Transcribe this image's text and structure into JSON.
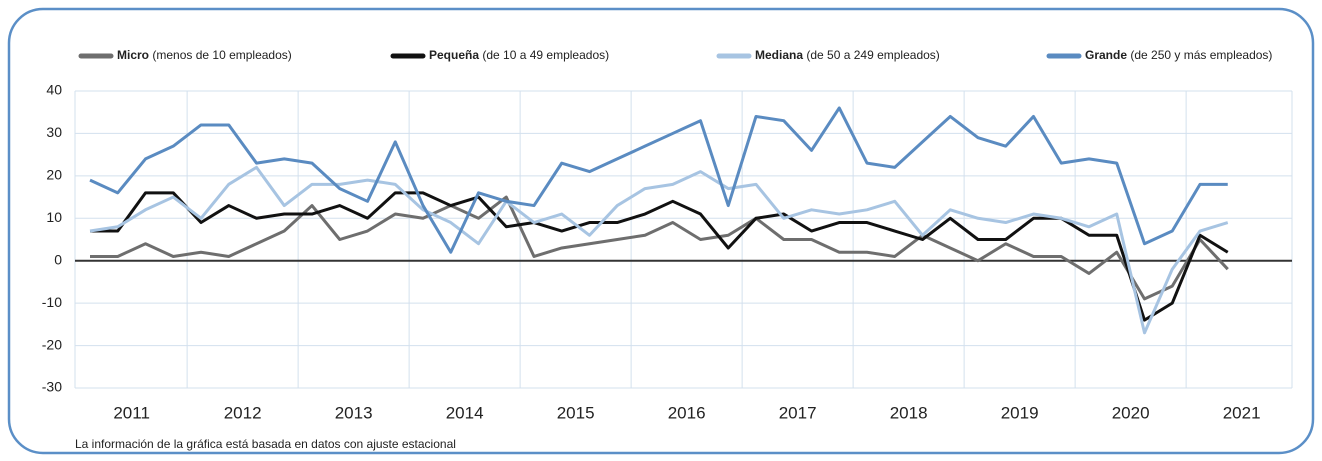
{
  "chart_data": {
    "type": "line",
    "categories": [
      "2011",
      null,
      null,
      null,
      "2012",
      null,
      null,
      null,
      "2013",
      null,
      null,
      null,
      "2014",
      null,
      null,
      null,
      "2015",
      null,
      null,
      null,
      "2016",
      null,
      null,
      null,
      "2017",
      null,
      null,
      null,
      "2018",
      null,
      null,
      null,
      "2019",
      null,
      null,
      null,
      "2020",
      null,
      null,
      null,
      "2021",
      null
    ],
    "series": [
      {
        "name": "Micro",
        "description": "(menos de 10 empleados)",
        "color": "#6e6e6e",
        "values": [
          1,
          1,
          4,
          1,
          2,
          1,
          4,
          7,
          13,
          5,
          7,
          11,
          10,
          13,
          10,
          15,
          1,
          3,
          4,
          5,
          6,
          9,
          5,
          6,
          10,
          5,
          5,
          2,
          2,
          1,
          6,
          3,
          0,
          4,
          1,
          1,
          -3,
          2,
          -9,
          -6,
          5,
          -2
        ]
      },
      {
        "name": "Pequeña",
        "description": "(de 10 a 49 empleados)",
        "color": "#111111",
        "values": [
          7,
          7,
          16,
          16,
          9,
          13,
          10,
          11,
          11,
          13,
          10,
          16,
          16,
          13,
          15,
          8,
          9,
          7,
          9,
          9,
          11,
          14,
          11,
          3,
          10,
          11,
          7,
          9,
          9,
          7,
          5,
          10,
          5,
          5,
          10,
          10,
          6,
          6,
          -14,
          -10,
          6,
          2
        ]
      },
      {
        "name": "Mediana",
        "description": "(de 50 a 249 empleados)",
        "color": "#a7c4e2",
        "values": [
          7,
          8,
          12,
          15,
          10,
          18,
          22,
          13,
          18,
          18,
          19,
          18,
          12,
          9,
          4,
          14,
          9,
          11,
          6,
          13,
          17,
          18,
          21,
          17,
          18,
          10,
          12,
          11,
          12,
          14,
          6,
          12,
          10,
          9,
          11,
          10,
          8,
          11,
          -17,
          -2,
          7,
          9
        ]
      },
      {
        "name": "Grande",
        "description": "(de 250 y más empleados)",
        "color": "#5a8bc1",
        "values": [
          19,
          16,
          24,
          27,
          32,
          32,
          23,
          24,
          23,
          17,
          14,
          28,
          13,
          2,
          16,
          14,
          13,
          23,
          21,
          24,
          27,
          30,
          33,
          13,
          34,
          33,
          26,
          36,
          23,
          22,
          28,
          34,
          29,
          27,
          34,
          23,
          24,
          23,
          4,
          7,
          18,
          18
        ]
      }
    ],
    "ylim": [
      -30,
      40
    ],
    "yticks": [
      40,
      30,
      20,
      10,
      0,
      -10,
      -20,
      -30
    ],
    "grid": true,
    "note": "La información de la gráfica está basada en datos con ajuste estacional"
  }
}
